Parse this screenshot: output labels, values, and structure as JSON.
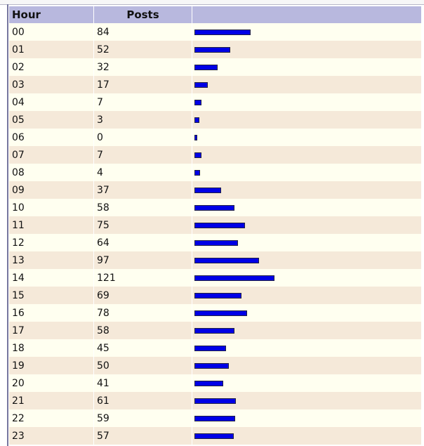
{
  "table": {
    "headers": {
      "hour": "Hour",
      "posts": "Posts",
      "bar": ""
    },
    "max_posts": 121,
    "rows": [
      {
        "hour": "00",
        "posts": "84"
      },
      {
        "hour": "01",
        "posts": "52"
      },
      {
        "hour": "02",
        "posts": "32"
      },
      {
        "hour": "03",
        "posts": "17"
      },
      {
        "hour": "04",
        "posts": "7"
      },
      {
        "hour": "05",
        "posts": "3"
      },
      {
        "hour": "06",
        "posts": "0"
      },
      {
        "hour": "07",
        "posts": "7"
      },
      {
        "hour": "08",
        "posts": "4"
      },
      {
        "hour": "09",
        "posts": "37"
      },
      {
        "hour": "10",
        "posts": "58"
      },
      {
        "hour": "11",
        "posts": "75"
      },
      {
        "hour": "12",
        "posts": "64"
      },
      {
        "hour": "13",
        "posts": "97"
      },
      {
        "hour": "14",
        "posts": "121"
      },
      {
        "hour": "15",
        "posts": "69"
      },
      {
        "hour": "16",
        "posts": "78"
      },
      {
        "hour": "17",
        "posts": "58"
      },
      {
        "hour": "18",
        "posts": "45"
      },
      {
        "hour": "19",
        "posts": "50"
      },
      {
        "hour": "20",
        "posts": "41"
      },
      {
        "hour": "21",
        "posts": "61"
      },
      {
        "hour": "22",
        "posts": "59"
      },
      {
        "hour": "23",
        "posts": "57"
      }
    ]
  },
  "colors": {
    "header_bg": "#b8b8de",
    "row_odd": "#fffff0",
    "row_even": "#f5e9d9",
    "bar_fill": "#0000e6"
  }
}
